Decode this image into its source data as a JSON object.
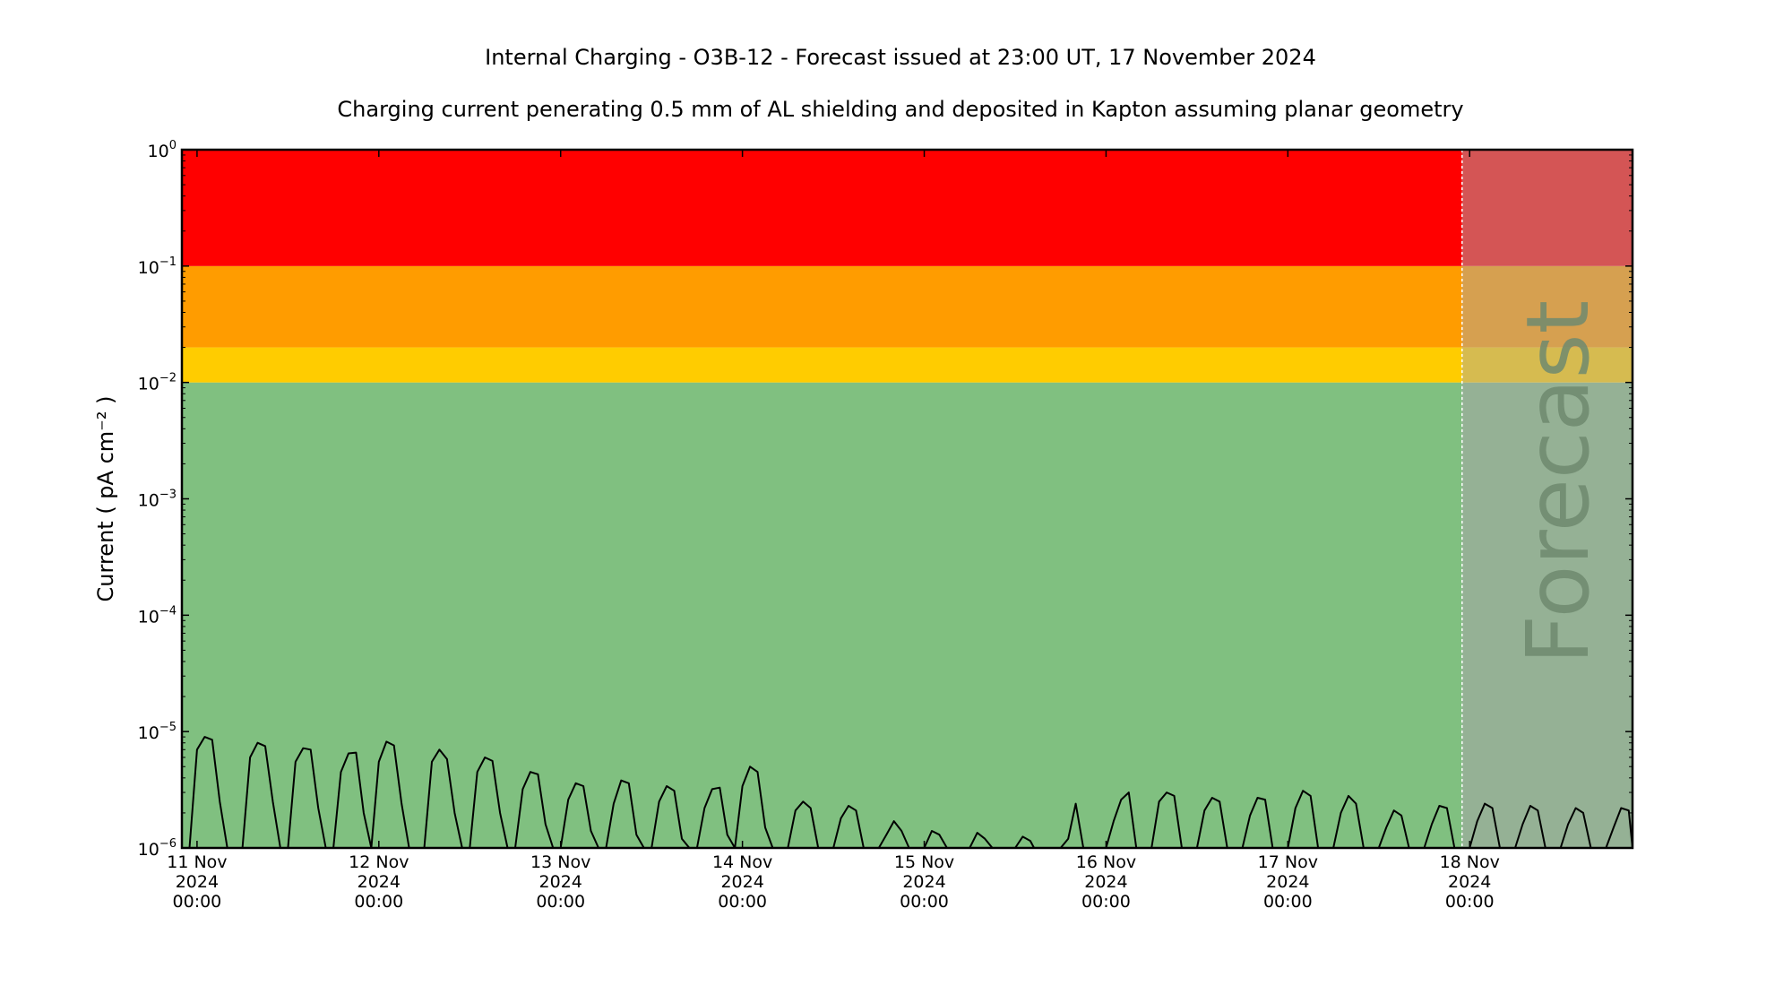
{
  "chart_data": {
    "type": "line",
    "title": "Internal Charging - O3B-12 - Forecast issued at 23:00 UT, 17 November 2024",
    "subtitle": "Charging current penerating 0.5 mm of AL shielding and deposited in Kapton assuming planar geometry",
    "ylabel": "Current ( pA cm⁻² )",
    "yscale": "log",
    "ylim": [
      1e-06,
      1
    ],
    "xlim": [
      "2024-11-10 22:00",
      "2024-11-18 21:30"
    ],
    "y_ticks": [
      {
        "value": 1e-06,
        "base": "10",
        "exp": "−6"
      },
      {
        "value": 1e-05,
        "base": "10",
        "exp": "−5"
      },
      {
        "value": 0.0001,
        "base": "10",
        "exp": "−4"
      },
      {
        "value": 0.001,
        "base": "10",
        "exp": "−3"
      },
      {
        "value": 0.01,
        "base": "10",
        "exp": "−2"
      },
      {
        "value": 0.1,
        "base": "10",
        "exp": "−1"
      },
      {
        "value": 1,
        "base": "10",
        "exp": "0"
      }
    ],
    "x_ticks": [
      {
        "t": "2024-11-11 00:00",
        "line1": "11 Nov",
        "line2": "2024",
        "line3": "00:00"
      },
      {
        "t": "2024-11-12 00:00",
        "line1": "12 Nov",
        "line2": "2024",
        "line3": "00:00"
      },
      {
        "t": "2024-11-13 00:00",
        "line1": "13 Nov",
        "line2": "2024",
        "line3": "00:00"
      },
      {
        "t": "2024-11-14 00:00",
        "line1": "14 Nov",
        "line2": "2024",
        "line3": "00:00"
      },
      {
        "t": "2024-11-15 00:00",
        "line1": "15 Nov",
        "line2": "2024",
        "line3": "00:00"
      },
      {
        "t": "2024-11-16 00:00",
        "line1": "16 Nov",
        "line2": "2024",
        "line3": "00:00"
      },
      {
        "t": "2024-11-17 00:00",
        "line1": "17 Nov",
        "line2": "2024",
        "line3": "00:00"
      },
      {
        "t": "2024-11-18 00:00",
        "line1": "18 Nov",
        "line2": "2024",
        "line3": "00:00"
      }
    ],
    "bands": [
      {
        "from": 1e-06,
        "to": 0.01,
        "color": "#80c080",
        "forecast_color": "#95b195"
      },
      {
        "from": 0.01,
        "to": 0.02,
        "color": "#ffcc00",
        "forecast_color": "#d6bb50"
      },
      {
        "from": 0.02,
        "to": 0.1,
        "color": "#ff9c00",
        "forecast_color": "#d6a050"
      },
      {
        "from": 0.1,
        "to": 1,
        "color": "#ff0000",
        "forecast_color": "#d45555"
      }
    ],
    "forecast_start": "2024-11-17 23:00",
    "forecast_label": "Forecast",
    "grid": false,
    "legend": "none",
    "series": [
      {
        "color": "#000000",
        "points": [
          [
            "2024-11-10 23:00",
            1e-06
          ],
          [
            "2024-11-11 00:00",
            7e-06
          ],
          [
            "2024-11-11 01:00",
            9e-06
          ],
          [
            "2024-11-11 02:00",
            8.5e-06
          ],
          [
            "2024-11-11 03:00",
            2.5e-06
          ],
          [
            "2024-11-11 04:00",
            1e-06
          ],
          [
            "2024-11-11 06:00",
            1e-06
          ],
          [
            "2024-11-11 07:00",
            6e-06
          ],
          [
            "2024-11-11 08:00",
            8e-06
          ],
          [
            "2024-11-11 09:00",
            7.5e-06
          ],
          [
            "2024-11-11 10:00",
            2.5e-06
          ],
          [
            "2024-11-11 11:00",
            1e-06
          ],
          [
            "2024-11-11 12:00",
            1e-06
          ],
          [
            "2024-11-11 13:00",
            5.5e-06
          ],
          [
            "2024-11-11 14:00",
            7.2e-06
          ],
          [
            "2024-11-11 15:00",
            7e-06
          ],
          [
            "2024-11-11 16:00",
            2.2e-06
          ],
          [
            "2024-11-11 17:00",
            1e-06
          ],
          [
            "2024-11-11 18:00",
            1e-06
          ],
          [
            "2024-11-11 19:00",
            4.5e-06
          ],
          [
            "2024-11-11 20:00",
            6.5e-06
          ],
          [
            "2024-11-11 21:00",
            6.6e-06
          ],
          [
            "2024-11-11 22:00",
            2e-06
          ],
          [
            "2024-11-11 23:00",
            1e-06
          ],
          [
            "2024-11-12 00:00",
            5.5e-06
          ],
          [
            "2024-11-12 01:00",
            8.2e-06
          ],
          [
            "2024-11-12 02:00",
            7.6e-06
          ],
          [
            "2024-11-12 03:00",
            2.4e-06
          ],
          [
            "2024-11-12 04:00",
            1e-06
          ],
          [
            "2024-11-12 06:00",
            1e-06
          ],
          [
            "2024-11-12 07:00",
            5.5e-06
          ],
          [
            "2024-11-12 08:00",
            7e-06
          ],
          [
            "2024-11-12 09:00",
            5.8e-06
          ],
          [
            "2024-11-12 10:00",
            2e-06
          ],
          [
            "2024-11-12 11:00",
            1e-06
          ],
          [
            "2024-11-12 12:00",
            1e-06
          ],
          [
            "2024-11-12 13:00",
            4.5e-06
          ],
          [
            "2024-11-12 14:00",
            6e-06
          ],
          [
            "2024-11-12 15:00",
            5.6e-06
          ],
          [
            "2024-11-12 16:00",
            2e-06
          ],
          [
            "2024-11-12 17:00",
            1e-06
          ],
          [
            "2024-11-12 18:00",
            1e-06
          ],
          [
            "2024-11-12 19:00",
            3.2e-06
          ],
          [
            "2024-11-12 20:00",
            4.5e-06
          ],
          [
            "2024-11-12 21:00",
            4.3e-06
          ],
          [
            "2024-11-12 22:00",
            1.6e-06
          ],
          [
            "2024-11-12 23:00",
            1e-06
          ],
          [
            "2024-11-13 00:00",
            1e-06
          ],
          [
            "2024-11-13 01:00",
            2.6e-06
          ],
          [
            "2024-11-13 02:00",
            3.6e-06
          ],
          [
            "2024-11-13 03:00",
            3.4e-06
          ],
          [
            "2024-11-13 04:00",
            1.4e-06
          ],
          [
            "2024-11-13 05:00",
            1e-06
          ],
          [
            "2024-11-13 06:00",
            1e-06
          ],
          [
            "2024-11-13 07:00",
            2.4e-06
          ],
          [
            "2024-11-13 08:00",
            3.8e-06
          ],
          [
            "2024-11-13 09:00",
            3.6e-06
          ],
          [
            "2024-11-13 10:00",
            1.3e-06
          ],
          [
            "2024-11-13 11:00",
            1e-06
          ],
          [
            "2024-11-13 12:00",
            1e-06
          ],
          [
            "2024-11-13 13:00",
            2.5e-06
          ],
          [
            "2024-11-13 14:00",
            3.4e-06
          ],
          [
            "2024-11-13 15:00",
            3.1e-06
          ],
          [
            "2024-11-13 16:00",
            1.2e-06
          ],
          [
            "2024-11-13 17:00",
            1e-06
          ],
          [
            "2024-11-13 18:00",
            1e-06
          ],
          [
            "2024-11-13 19:00",
            2.2e-06
          ],
          [
            "2024-11-13 20:00",
            3.2e-06
          ],
          [
            "2024-11-13 21:00",
            3.3e-06
          ],
          [
            "2024-11-13 22:00",
            1.3e-06
          ],
          [
            "2024-11-13 23:00",
            1e-06
          ],
          [
            "2024-11-14 00:00",
            3.4e-06
          ],
          [
            "2024-11-14 01:00",
            5e-06
          ],
          [
            "2024-11-14 02:00",
            4.5e-06
          ],
          [
            "2024-11-14 03:00",
            1.5e-06
          ],
          [
            "2024-11-14 04:00",
            1e-06
          ],
          [
            "2024-11-14 06:00",
            1e-06
          ],
          [
            "2024-11-14 07:00",
            2.1e-06
          ],
          [
            "2024-11-14 08:00",
            2.5e-06
          ],
          [
            "2024-11-14 09:00",
            2.2e-06
          ],
          [
            "2024-11-14 10:00",
            1e-06
          ],
          [
            "2024-11-14 12:00",
            1e-06
          ],
          [
            "2024-11-14 13:00",
            1.8e-06
          ],
          [
            "2024-11-14 14:00",
            2.3e-06
          ],
          [
            "2024-11-14 15:00",
            2.1e-06
          ],
          [
            "2024-11-14 16:00",
            1e-06
          ],
          [
            "2024-11-14 18:00",
            1e-06
          ],
          [
            "2024-11-14 19:00",
            1.3e-06
          ],
          [
            "2024-11-14 20:00",
            1.7e-06
          ],
          [
            "2024-11-14 21:00",
            1.4e-06
          ],
          [
            "2024-11-14 22:00",
            1e-06
          ],
          [
            "2024-11-15 00:00",
            1e-06
          ],
          [
            "2024-11-15 01:00",
            1.4e-06
          ],
          [
            "2024-11-15 02:00",
            1.3e-06
          ],
          [
            "2024-11-15 03:00",
            1e-06
          ],
          [
            "2024-11-15 06:00",
            1e-06
          ],
          [
            "2024-11-15 07:00",
            1.35e-06
          ],
          [
            "2024-11-15 08:00",
            1.2e-06
          ],
          [
            "2024-11-15 09:00",
            1e-06
          ],
          [
            "2024-11-15 12:00",
            1e-06
          ],
          [
            "2024-11-15 13:00",
            1.25e-06
          ],
          [
            "2024-11-15 14:00",
            1.15e-06
          ],
          [
            "2024-11-15 14:30",
            1e-06
          ],
          [
            "2024-11-15 18:00",
            1e-06
          ],
          [
            "2024-11-15 19:00",
            1.2e-06
          ],
          [
            "2024-11-15 20:00",
            2.4e-06
          ],
          [
            "2024-11-15 21:00",
            1e-06
          ],
          [
            "2024-11-16 00:00",
            1e-06
          ],
          [
            "2024-11-16 01:00",
            1.7e-06
          ],
          [
            "2024-11-16 02:00",
            2.6e-06
          ],
          [
            "2024-11-16 03:00",
            3e-06
          ],
          [
            "2024-11-16 04:00",
            1e-06
          ],
          [
            "2024-11-16 06:00",
            1e-06
          ],
          [
            "2024-11-16 07:00",
            2.5e-06
          ],
          [
            "2024-11-16 08:00",
            3e-06
          ],
          [
            "2024-11-16 09:00",
            2.8e-06
          ],
          [
            "2024-11-16 10:00",
            1e-06
          ],
          [
            "2024-11-16 12:00",
            1e-06
          ],
          [
            "2024-11-16 13:00",
            2.1e-06
          ],
          [
            "2024-11-16 14:00",
            2.7e-06
          ],
          [
            "2024-11-16 15:00",
            2.5e-06
          ],
          [
            "2024-11-16 16:00",
            1e-06
          ],
          [
            "2024-11-16 18:00",
            1e-06
          ],
          [
            "2024-11-16 19:00",
            1.9e-06
          ],
          [
            "2024-11-16 20:00",
            2.7e-06
          ],
          [
            "2024-11-16 21:00",
            2.6e-06
          ],
          [
            "2024-11-16 22:00",
            1e-06
          ],
          [
            "2024-11-17 00:00",
            1e-06
          ],
          [
            "2024-11-17 01:00",
            2.2e-06
          ],
          [
            "2024-11-17 02:00",
            3.1e-06
          ],
          [
            "2024-11-17 03:00",
            2.8e-06
          ],
          [
            "2024-11-17 04:00",
            1e-06
          ],
          [
            "2024-11-17 06:00",
            1e-06
          ],
          [
            "2024-11-17 07:00",
            2e-06
          ],
          [
            "2024-11-17 08:00",
            2.8e-06
          ],
          [
            "2024-11-17 09:00",
            2.4e-06
          ],
          [
            "2024-11-17 10:00",
            1e-06
          ],
          [
            "2024-11-17 12:00",
            1e-06
          ],
          [
            "2024-11-17 13:00",
            1.5e-06
          ],
          [
            "2024-11-17 14:00",
            2.1e-06
          ],
          [
            "2024-11-17 15:00",
            1.9e-06
          ],
          [
            "2024-11-17 16:00",
            1e-06
          ],
          [
            "2024-11-17 18:00",
            1e-06
          ],
          [
            "2024-11-17 19:00",
            1.6e-06
          ],
          [
            "2024-11-17 20:00",
            2.3e-06
          ],
          [
            "2024-11-17 21:00",
            2.2e-06
          ],
          [
            "2024-11-17 22:00",
            1e-06
          ],
          [
            "2024-11-18 00:00",
            1e-06
          ],
          [
            "2024-11-18 01:00",
            1.7e-06
          ],
          [
            "2024-11-18 02:00",
            2.4e-06
          ],
          [
            "2024-11-18 03:00",
            2.2e-06
          ],
          [
            "2024-11-18 04:00",
            1e-06
          ],
          [
            "2024-11-18 06:00",
            1e-06
          ],
          [
            "2024-11-18 07:00",
            1.6e-06
          ],
          [
            "2024-11-18 08:00",
            2.3e-06
          ],
          [
            "2024-11-18 09:00",
            2.1e-06
          ],
          [
            "2024-11-18 10:00",
            1e-06
          ],
          [
            "2024-11-18 12:00",
            1e-06
          ],
          [
            "2024-11-18 13:00",
            1.6e-06
          ],
          [
            "2024-11-18 14:00",
            2.2e-06
          ],
          [
            "2024-11-18 15:00",
            2e-06
          ],
          [
            "2024-11-18 16:00",
            1e-06
          ],
          [
            "2024-11-18 18:00",
            1e-06
          ],
          [
            "2024-11-18 19:00",
            1.5e-06
          ],
          [
            "2024-11-18 20:00",
            2.2e-06
          ],
          [
            "2024-11-18 21:00",
            2.1e-06
          ],
          [
            "2024-11-18 21:30",
            1e-06
          ]
        ]
      }
    ]
  }
}
